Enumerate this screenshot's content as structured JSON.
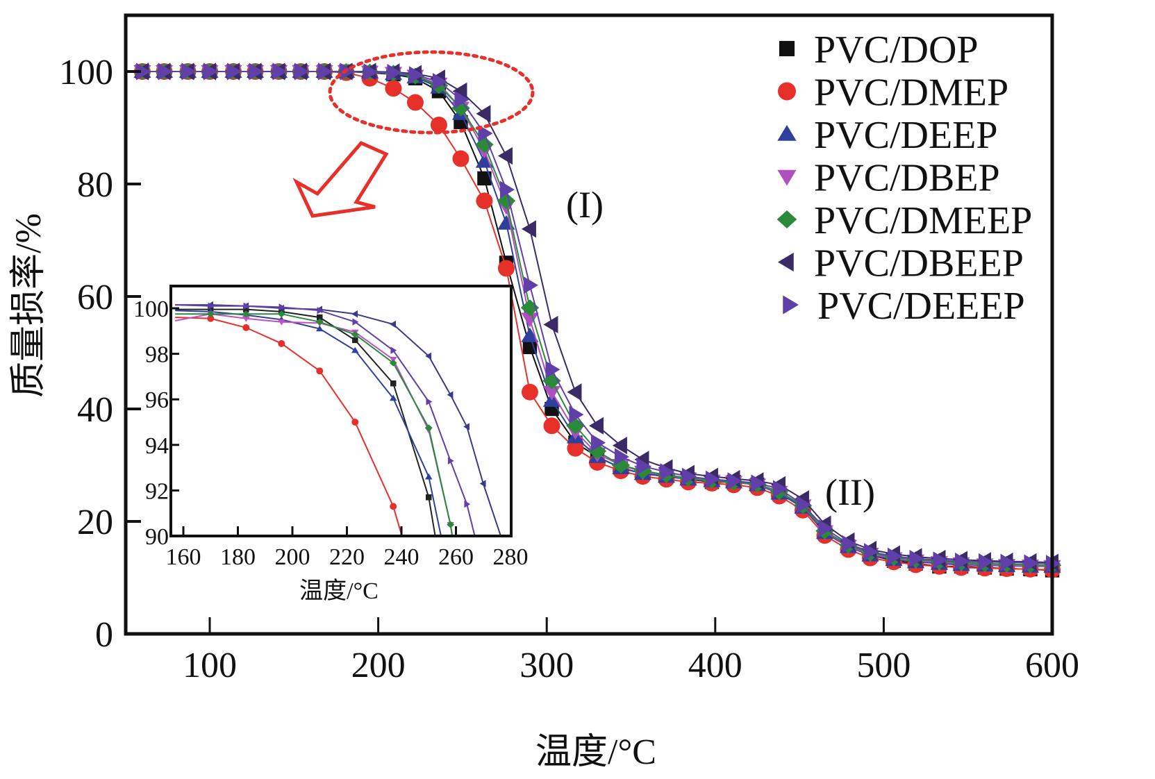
{
  "chart_data": [
    {
      "id": "main",
      "type": "line",
      "title": "",
      "xlabel": "温度/°C",
      "ylabel": "质量损率/%",
      "xlim": [
        50,
        600
      ],
      "ylim": [
        0,
        110
      ],
      "xticks": [
        100,
        200,
        300,
        400,
        500,
        600
      ],
      "yticks": [
        0,
        20,
        40,
        60,
        80,
        100
      ],
      "grid": false,
      "legend_position": "top-right",
      "annotations": [
        {
          "text": "(I)",
          "x": 325,
          "y": 76
        },
        {
          "text": "(II)",
          "x": 480,
          "y": 25
        },
        {
          "text": "dotted-ellipse-highlight",
          "x": 230,
          "y": 97
        },
        {
          "text": "hollow-arrow-to-inset",
          "direction": "down-left"
        }
      ],
      "x": [
        60,
        73,
        87,
        100,
        114,
        127,
        141,
        154,
        168,
        181,
        195,
        209,
        222,
        236,
        249,
        263,
        276,
        290,
        303,
        317,
        330,
        344,
        357,
        371,
        384,
        398,
        411,
        425,
        438,
        452,
        465,
        479,
        492,
        506,
        519,
        533,
        546,
        560,
        573,
        587,
        600
      ],
      "series": [
        {
          "name": "PVC/DOP",
          "color": "#111111",
          "marker": "square",
          "values": [
            100,
            100,
            100,
            100,
            100,
            100,
            100,
            100,
            100,
            100,
            99.8,
            99.5,
            98.8,
            96.5,
            91,
            81,
            66,
            51,
            40,
            34,
            31.5,
            29.5,
            28.5,
            28,
            27.5,
            27,
            27,
            26.5,
            25,
            22.5,
            18,
            15.5,
            14,
            13,
            12.5,
            12,
            12,
            11.8,
            11.6,
            11.5,
            11.3
          ]
        },
        {
          "name": "PVC/DMEP",
          "color": "#e8302a",
          "marker": "circle",
          "values": [
            100,
            100,
            100,
            100,
            100,
            100,
            100,
            100,
            100,
            99.8,
            98.8,
            97,
            94.5,
            90.5,
            84.5,
            77,
            65,
            43,
            37,
            33,
            30.5,
            29,
            28,
            27.5,
            27,
            26.8,
            26.5,
            26,
            24.5,
            22,
            17.5,
            15,
            13.5,
            12.8,
            12.3,
            12,
            11.8,
            11.7,
            11.6,
            11.5,
            11.4
          ]
        },
        {
          "name": "PVC/DEEP",
          "color": "#2f3f9e",
          "marker": "triangle-up",
          "values": [
            100,
            100,
            100,
            100,
            100,
            100,
            100,
            100,
            100,
            100,
            99.9,
            99.6,
            99,
            97.2,
            92.5,
            84,
            73,
            53,
            41.5,
            35,
            31.5,
            29.5,
            28.5,
            28,
            27.5,
            27.2,
            27,
            26.5,
            25,
            22.5,
            18,
            15.5,
            14,
            13.2,
            12.8,
            12.5,
            12.3,
            12.2,
            12.1,
            12,
            12
          ]
        },
        {
          "name": "PVC/DBEP",
          "color": "#b050c0",
          "marker": "triangle-down",
          "values": [
            100,
            100,
            100,
            100,
            100,
            100,
            100,
            100,
            100,
            100,
            99.9,
            99.7,
            99.2,
            97.8,
            93.5,
            86,
            76,
            56,
            43,
            36,
            32,
            30,
            28.8,
            28.2,
            27.6,
            27.2,
            27,
            26.5,
            25.2,
            22.8,
            18.2,
            15.6,
            14.2,
            13.4,
            13,
            12.7,
            12.5,
            12.3,
            12.2,
            12.1,
            12
          ]
        },
        {
          "name": "PVC/DMEEP",
          "color": "#2a8a3a",
          "marker": "diamond",
          "values": [
            100,
            100,
            100,
            100,
            100,
            100,
            100,
            100,
            100,
            100,
            99.9,
            99.7,
            99.2,
            97.5,
            93.5,
            87,
            77,
            58,
            45,
            37,
            32.5,
            30,
            29,
            28.3,
            27.7,
            27.3,
            27,
            26.6,
            25.3,
            22.8,
            18.3,
            15.8,
            14.4,
            13.6,
            13.2,
            12.9,
            12.7,
            12.5,
            12.4,
            12.3,
            12.2
          ]
        },
        {
          "name": "PVC/DBEEP",
          "color": "#3a2a66",
          "marker": "triangle-left",
          "values": [
            100,
            100,
            100,
            100,
            100,
            100,
            100,
            100,
            100,
            100,
            100,
            99.9,
            99.6,
            98.8,
            96.5,
            92.5,
            85,
            72,
            55,
            43,
            37,
            33.5,
            31,
            29.5,
            28.5,
            28,
            27.6,
            27.2,
            26.5,
            24,
            19.5,
            16.5,
            15,
            14.2,
            13.7,
            13.4,
            13.2,
            13,
            12.9,
            12.8,
            12.7
          ]
        },
        {
          "name": "PVC/DEEEP",
          "color": "#6040a8",
          "marker": "triangle-right",
          "values": [
            100,
            100,
            100,
            100,
            100,
            100,
            100,
            100,
            100,
            100,
            99.9,
            99.8,
            99.4,
            98.2,
            95,
            89,
            79,
            62,
            47,
            39,
            34,
            31.5,
            29.8,
            28.8,
            28,
            27.5,
            27.2,
            26.8,
            25.8,
            23,
            18.8,
            16,
            14.6,
            13.8,
            13.4,
            13.1,
            12.9,
            12.8,
            12.7,
            12.6,
            12.5
          ]
        }
      ]
    },
    {
      "id": "inset",
      "type": "line",
      "title": "",
      "xlabel": "温度/°C",
      "ylabel": "",
      "xlim": [
        157,
        280
      ],
      "ylim": [
        90,
        101
      ],
      "xticks": [
        160,
        180,
        200,
        220,
        240,
        260,
        280
      ],
      "yticks": [
        90,
        92,
        94,
        96,
        98,
        100
      ],
      "grid": false,
      "x": [
        157,
        170,
        183,
        196,
        210,
        223,
        237,
        250,
        258,
        264,
        270,
        277
      ],
      "series": [
        {
          "name": "PVC/DOP",
          "color": "#222222",
          "marker": "square",
          "values": [
            99.95,
            99.95,
            99.95,
            99.85,
            99.6,
            98.6,
            96.7,
            91.7,
            86,
            null,
            null,
            null
          ]
        },
        {
          "name": "PVC/DMEP",
          "color": "#e8302a",
          "marker": "circle",
          "values": [
            99.6,
            99.55,
            99.15,
            98.45,
            97.25,
            95.0,
            91.3,
            86,
            null,
            null,
            null,
            null
          ]
        },
        {
          "name": "PVC/DEEP",
          "color": "#2f3f9e",
          "marker": "triangle-up",
          "values": [
            99.9,
            99.85,
            99.7,
            99.5,
            99.1,
            98.15,
            96.05,
            92.6,
            88,
            null,
            null,
            null
          ]
        },
        {
          "name": "PVC/DBEP",
          "color": "#c050c8",
          "marker": "triangle-down",
          "values": [
            99.45,
            99.75,
            99.55,
            99.4,
            99.35,
            98.95,
            97.75,
            94.65,
            90.5,
            86,
            null,
            null
          ]
        },
        {
          "name": "PVC/DMEEP",
          "color": "#2a8a3a",
          "marker": "diamond",
          "values": [
            99.75,
            99.75,
            99.75,
            99.75,
            99.4,
            98.85,
            97.6,
            94.75,
            90.5,
            86,
            null,
            null
          ]
        },
        {
          "name": "PVC/DBEEP",
          "color": "#3a3a8a",
          "marker": "triangle-left",
          "values": [
            100.15,
            100.15,
            100.1,
            100.0,
            99.95,
            99.75,
            99.3,
            97.9,
            96.2,
            94.8,
            92.3,
            89.8
          ]
        },
        {
          "name": "PVC/DEEEP",
          "color": "#6040a8",
          "marker": "triangle-right",
          "values": [
            100.15,
            100.1,
            100.1,
            100.05,
            99.9,
            99.4,
            98.15,
            95.9,
            93.3,
            91.4,
            88.5,
            null
          ]
        }
      ]
    }
  ]
}
